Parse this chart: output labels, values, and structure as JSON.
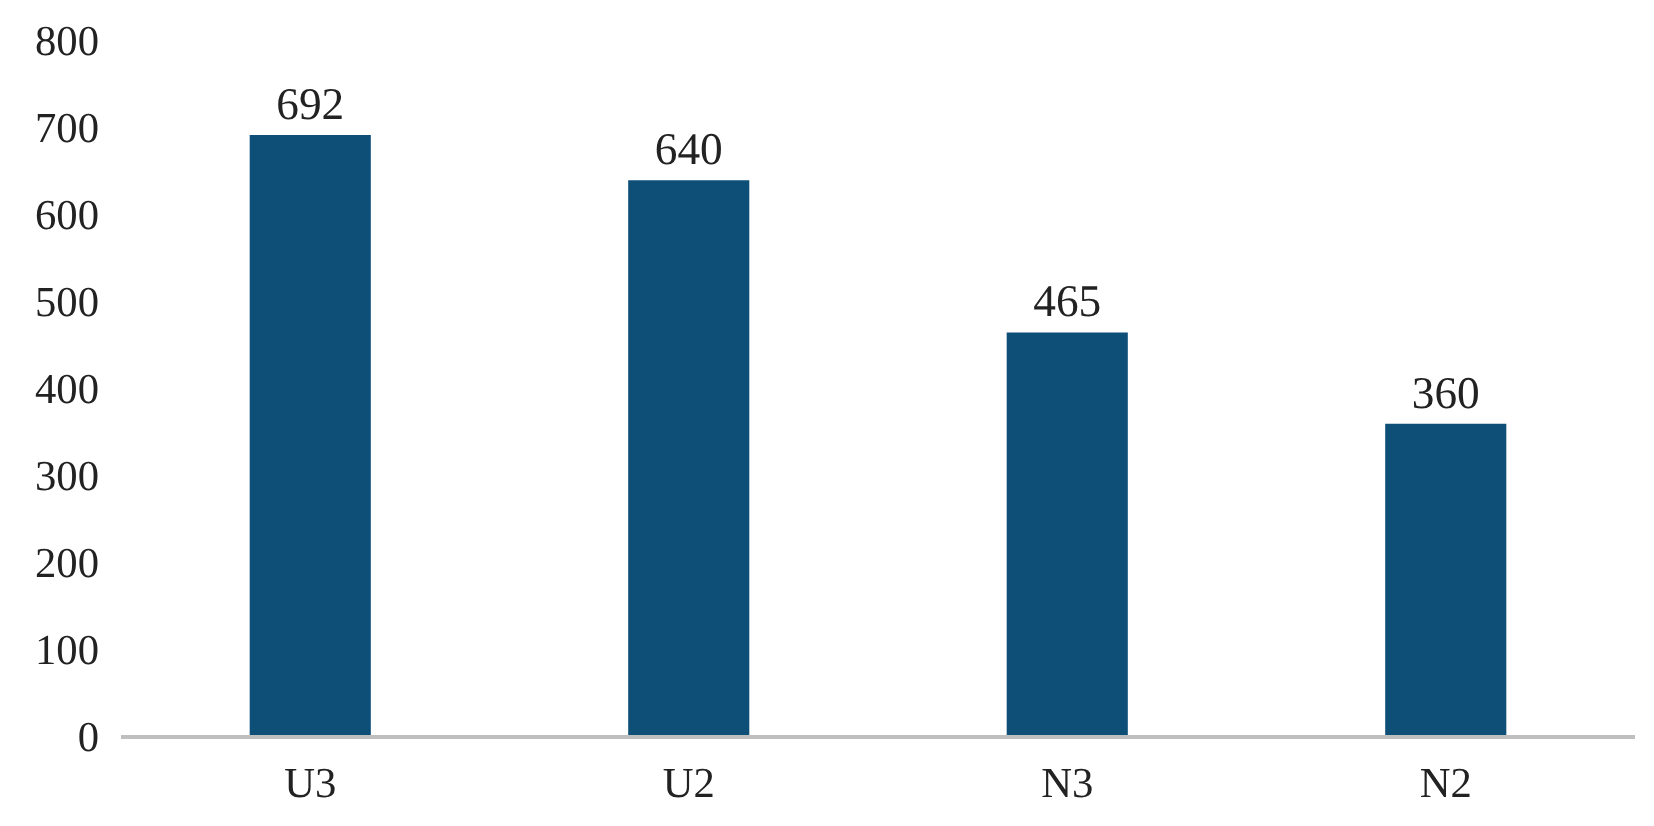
{
  "chart_data": {
    "type": "bar",
    "categories": [
      "U3",
      "U2",
      "N3",
      "N2"
    ],
    "values": [
      692,
      640,
      465,
      360
    ],
    "color": "#0e4f78",
    "ylim": [
      0,
      800
    ],
    "yticks": [
      0,
      100,
      200,
      300,
      400,
      500,
      600,
      700,
      800
    ],
    "data_labels": true,
    "grid": false
  }
}
